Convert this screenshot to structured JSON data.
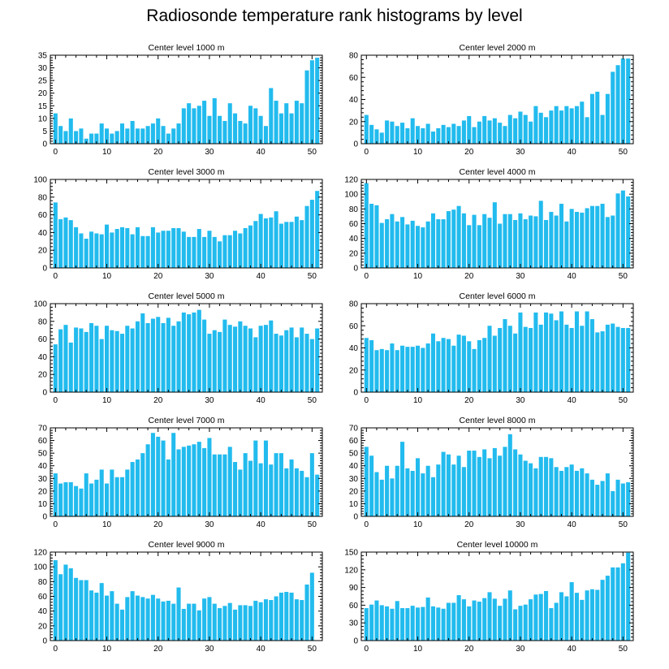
{
  "title": "Radiosonde temperature rank histograms by level",
  "colors": {
    "bar": "#22bbee",
    "axis": "#000000",
    "background": "#ffffff"
  },
  "chart_data": [
    {
      "type": "bar",
      "title": "Center level 1000 m",
      "x": "ranks 0-51",
      "xlim": [
        -1,
        52
      ],
      "ylim": [
        0,
        35
      ],
      "xticks": [
        0,
        10,
        20,
        30,
        40,
        50
      ],
      "yticks": [
        0,
        5,
        10,
        15,
        20,
        25,
        30,
        35
      ],
      "values": [
        12,
        7,
        5,
        10,
        5,
        6,
        2,
        4,
        4,
        8,
        6,
        4,
        5,
        8,
        6,
        9,
        6,
        6,
        7,
        8,
        10,
        7,
        4,
        6,
        8,
        14,
        16,
        14,
        15,
        17,
        11,
        18,
        11,
        9,
        16,
        12,
        9,
        8,
        15,
        14,
        11,
        7,
        22,
        17,
        12,
        16,
        12,
        17,
        16,
        29,
        33,
        34
      ]
    },
    {
      "type": "bar",
      "title": "Center level 2000 m",
      "x": "ranks 0-51",
      "xlim": [
        -1,
        52
      ],
      "ylim": [
        0,
        80
      ],
      "xticks": [
        0,
        10,
        20,
        30,
        40,
        50
      ],
      "yticks": [
        0,
        20,
        40,
        60,
        80
      ],
      "values": [
        26,
        17,
        13,
        10,
        21,
        20,
        16,
        19,
        14,
        23,
        16,
        14,
        18,
        11,
        14,
        17,
        15,
        18,
        16,
        21,
        25,
        15,
        20,
        25,
        21,
        23,
        19,
        16,
        26,
        23,
        29,
        26,
        20,
        34,
        28,
        24,
        30,
        34,
        30,
        34,
        32,
        34,
        38,
        24,
        45,
        47,
        26,
        45,
        65,
        71,
        77,
        77
      ]
    },
    {
      "type": "bar",
      "title": "Center level 3000 m",
      "x": "ranks 0-51",
      "xlim": [
        -1,
        52
      ],
      "ylim": [
        0,
        100
      ],
      "xticks": [
        0,
        10,
        20,
        30,
        40,
        50
      ],
      "yticks": [
        0,
        20,
        40,
        60,
        80,
        100
      ],
      "values": [
        74,
        55,
        57,
        54,
        46,
        39,
        33,
        41,
        39,
        38,
        49,
        40,
        44,
        46,
        45,
        38,
        46,
        36,
        36,
        46,
        40,
        42,
        42,
        45,
        45,
        41,
        35,
        35,
        44,
        35,
        42,
        35,
        30,
        37,
        37,
        42,
        39,
        45,
        48,
        53,
        61,
        56,
        57,
        64,
        50,
        52,
        52,
        58,
        54,
        70,
        77,
        87
      ]
    },
    {
      "type": "bar",
      "title": "Center level 4000 m",
      "x": "ranks 0-51",
      "xlim": [
        -1,
        52
      ],
      "ylim": [
        0,
        120
      ],
      "xticks": [
        0,
        10,
        20,
        30,
        40,
        50
      ],
      "yticks": [
        0,
        20,
        40,
        60,
        80,
        100,
        120
      ],
      "values": [
        115,
        87,
        85,
        61,
        66,
        73,
        63,
        69,
        59,
        64,
        57,
        55,
        63,
        74,
        66,
        66,
        77,
        79,
        84,
        74,
        58,
        72,
        58,
        73,
        68,
        89,
        60,
        73,
        73,
        65,
        74,
        66,
        71,
        70,
        91,
        65,
        76,
        71,
        87,
        63,
        80,
        76,
        75,
        81,
        84,
        84,
        87,
        69,
        71,
        101,
        105,
        97
      ]
    },
    {
      "type": "bar",
      "title": "Center level 5000 m",
      "x": "ranks 0-51",
      "xlim": [
        -1,
        52
      ],
      "ylim": [
        0,
        100
      ],
      "xticks": [
        0,
        10,
        20,
        30,
        40,
        50
      ],
      "yticks": [
        0,
        20,
        40,
        60,
        80,
        100
      ],
      "values": [
        54,
        71,
        76,
        56,
        73,
        72,
        68,
        78,
        75,
        60,
        75,
        70,
        69,
        66,
        75,
        72,
        80,
        89,
        78,
        83,
        85,
        78,
        84,
        75,
        80,
        90,
        88,
        90,
        93,
        82,
        66,
        70,
        68,
        82,
        76,
        74,
        80,
        75,
        72,
        62,
        75,
        76,
        81,
        66,
        64,
        70,
        73,
        62,
        73,
        66,
        60,
        72
      ]
    },
    {
      "type": "bar",
      "title": "Center level 6000 m",
      "x": "ranks 0-51",
      "xlim": [
        -1,
        52
      ],
      "ylim": [
        0,
        80
      ],
      "xticks": [
        0,
        10,
        20,
        30,
        40,
        50
      ],
      "yticks": [
        0,
        20,
        40,
        60,
        80
      ],
      "values": [
        49,
        47,
        38,
        39,
        38,
        44,
        38,
        42,
        41,
        41,
        42,
        40,
        44,
        53,
        46,
        49,
        48,
        42,
        52,
        51,
        46,
        39,
        47,
        49,
        60,
        51,
        58,
        66,
        60,
        53,
        72,
        59,
        58,
        72,
        61,
        72,
        71,
        65,
        73,
        61,
        58,
        73,
        60,
        73,
        66,
        54,
        55,
        61,
        62,
        59,
        58,
        58
      ]
    },
    {
      "type": "bar",
      "title": "Center level 7000 m",
      "x": "ranks 0-51",
      "xlim": [
        -1,
        52
      ],
      "ylim": [
        0,
        70
      ],
      "xticks": [
        0,
        10,
        20,
        30,
        40,
        50
      ],
      "yticks": [
        0,
        10,
        20,
        30,
        40,
        50,
        60,
        70
      ],
      "values": [
        34,
        26,
        27,
        27,
        24,
        22,
        34,
        26,
        29,
        37,
        26,
        37,
        31,
        31,
        37,
        43,
        45,
        50,
        57,
        66,
        63,
        60,
        45,
        66,
        53,
        55,
        56,
        57,
        59,
        54,
        62,
        49,
        49,
        49,
        55,
        43,
        37,
        50,
        44,
        60,
        42,
        60,
        41,
        50,
        50,
        38,
        45,
        38,
        36,
        31,
        50,
        33
      ]
    },
    {
      "type": "bar",
      "title": "Center level 8000 m",
      "x": "ranks 0-51",
      "xlim": [
        -1,
        52
      ],
      "ylim": [
        0,
        70
      ],
      "xticks": [
        0,
        10,
        20,
        30,
        40,
        50
      ],
      "yticks": [
        0,
        10,
        20,
        30,
        40,
        50,
        60,
        70
      ],
      "values": [
        55,
        48,
        35,
        29,
        40,
        30,
        40,
        59,
        38,
        36,
        46,
        34,
        40,
        31,
        41,
        51,
        49,
        41,
        48,
        39,
        52,
        52,
        47,
        53,
        46,
        54,
        48,
        55,
        65,
        53,
        49,
        44,
        42,
        38,
        47,
        47,
        46,
        39,
        36,
        39,
        41,
        36,
        38,
        34,
        29,
        25,
        28,
        34,
        20,
        29,
        26,
        27
      ]
    },
    {
      "type": "bar",
      "title": "Center level 9000 m",
      "x": "ranks 0-51",
      "xlim": [
        -1,
        52
      ],
      "ylim": [
        0,
        120
      ],
      "xticks": [
        0,
        10,
        20,
        30,
        40,
        50
      ],
      "yticks": [
        0,
        20,
        40,
        60,
        80,
        100,
        120
      ],
      "values": [
        109,
        90,
        103,
        98,
        85,
        82,
        82,
        68,
        65,
        78,
        61,
        67,
        50,
        42,
        59,
        67,
        61,
        59,
        57,
        62,
        57,
        53,
        54,
        50,
        72,
        43,
        50,
        50,
        41,
        57,
        59,
        50,
        44,
        47,
        51,
        42,
        48,
        48,
        47,
        54,
        52,
        56,
        55,
        60,
        65,
        66,
        65,
        56,
        55,
        76,
        92,
        0
      ]
    },
    {
      "type": "bar",
      "title": "Center level 10000 m",
      "x": "ranks 0-51",
      "xlim": [
        -1,
        52
      ],
      "ylim": [
        0,
        150
      ],
      "xticks": [
        0,
        10,
        20,
        30,
        40,
        50
      ],
      "yticks": [
        0,
        30,
        60,
        90,
        120,
        150
      ],
      "values": [
        55,
        61,
        68,
        60,
        58,
        54,
        67,
        55,
        55,
        59,
        56,
        57,
        73,
        58,
        56,
        54,
        64,
        64,
        77,
        70,
        58,
        68,
        66,
        72,
        82,
        71,
        59,
        71,
        85,
        53,
        59,
        61,
        70,
        78,
        79,
        84,
        55,
        64,
        82,
        75,
        99,
        81,
        69,
        85,
        87,
        86,
        103,
        110,
        124,
        124,
        131,
        149
      ]
    }
  ]
}
